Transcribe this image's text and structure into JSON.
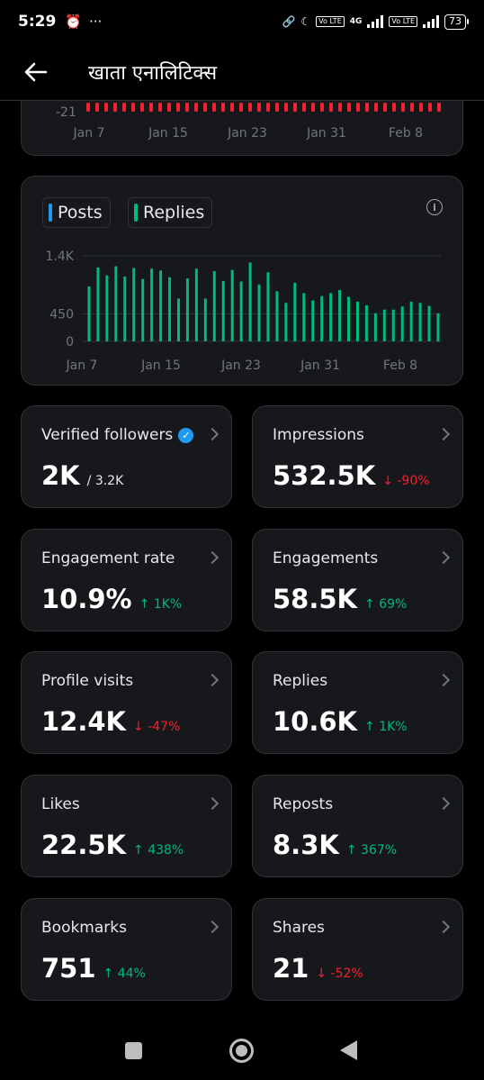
{
  "status_bar": {
    "time": "5:29",
    "alarm_icon": "alarm-clock-icon",
    "more": "···",
    "network": "4G",
    "lte_tag": "Vo LTE",
    "battery": "73"
  },
  "header": {
    "title": "खाता एनालिटिक्स"
  },
  "top_chart": {
    "ytick": "-21",
    "xlabels": [
      "Jan 7",
      "Jan 15",
      "Jan 23",
      "Jan 31",
      "Feb 8"
    ],
    "bar_color": "#f4212e"
  },
  "chart_data": {
    "type": "bar",
    "legend": [
      {
        "name": "Posts",
        "color": "#1d9bf0"
      },
      {
        "name": "Replies",
        "color": "#00ba7c"
      }
    ],
    "ytick_labels": [
      "1.4K",
      "450",
      "0"
    ],
    "yticks": [
      1400,
      450,
      0
    ],
    "ylim": [
      0,
      1400
    ],
    "xtick_labels": [
      "Jan 7",
      "Jan 15",
      "Jan 23",
      "Jan 31",
      "Feb 8"
    ],
    "series": [
      {
        "name": "Replies",
        "color": "#00ba7c",
        "values": [
          900,
          1210,
          1080,
          1230,
          1060,
          1200,
          1020,
          1190,
          1160,
          1050,
          700,
          1030,
          1190,
          700,
          1150,
          990,
          1170,
          980,
          1290,
          930,
          1130,
          820,
          630,
          960,
          790,
          670,
          740,
          790,
          840,
          730,
          650,
          590,
          460,
          520,
          520,
          570,
          650,
          630,
          580,
          460
        ]
      }
    ]
  },
  "stats": [
    {
      "label": "Verified followers",
      "value": "2K",
      "sub": "/ 3.2K",
      "change": "",
      "dir": "",
      "verified": true
    },
    {
      "label": "Impressions",
      "value": "532.5K",
      "sub": "",
      "change": "↓ -90%",
      "dir": "down"
    },
    {
      "label": "Engagement rate",
      "value": "10.9%",
      "sub": "",
      "change": "↑ 1K%",
      "dir": "up"
    },
    {
      "label": "Engagements",
      "value": "58.5K",
      "sub": "",
      "change": "↑ 69%",
      "dir": "up"
    },
    {
      "label": "Profile visits",
      "value": "12.4K",
      "sub": "",
      "change": "↓ -47%",
      "dir": "down"
    },
    {
      "label": "Replies",
      "value": "10.6K",
      "sub": "",
      "change": "↑ 1K%",
      "dir": "up"
    },
    {
      "label": "Likes",
      "value": "22.5K",
      "sub": "",
      "change": "↑ 438%",
      "dir": "up"
    },
    {
      "label": "Reposts",
      "value": "8.3K",
      "sub": "",
      "change": "↑ 367%",
      "dir": "up"
    },
    {
      "label": "Bookmarks",
      "value": "751",
      "sub": "",
      "change": "↑ 44%",
      "dir": "up"
    },
    {
      "label": "Shares",
      "value": "21",
      "sub": "",
      "change": "↓ -52%",
      "dir": "down"
    }
  ]
}
